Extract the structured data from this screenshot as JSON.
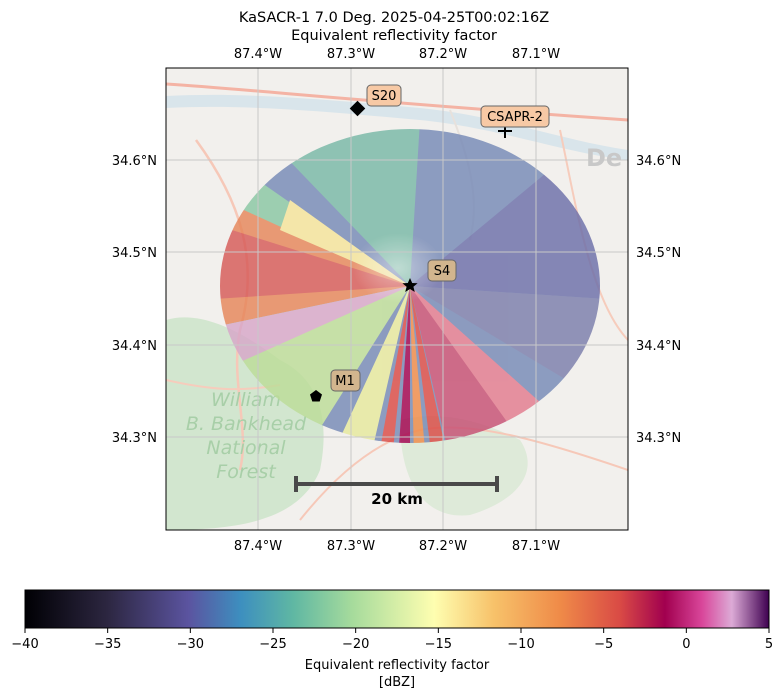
{
  "figure": {
    "title_line1": "KaSACR-1 7.0 Deg. 2025-04-25T00:02:16Z",
    "title_line2": "Equivalent reflectivity factor"
  },
  "map": {
    "lon_ticks": [
      "87.4°W",
      "87.3°W",
      "87.2°W",
      "87.1°W"
    ],
    "lat_ticks": [
      "34.6°N",
      "34.5°N",
      "34.4°N",
      "34.3°N"
    ],
    "gridlines": true,
    "basemap_text": {
      "town": "De",
      "forest": [
        "William",
        "B. Bankhead",
        "National",
        "Forest"
      ]
    },
    "scale_bar_label": "20 km"
  },
  "sites": [
    {
      "name": "S20",
      "marker": "diamond"
    },
    {
      "name": "CSAPR-2",
      "marker": "plus"
    },
    {
      "name": "S4",
      "marker": "star"
    },
    {
      "name": "M1",
      "marker": "pentagon"
    }
  ],
  "colorbar": {
    "label_line1": "Equivalent reflectivity factor",
    "label_line2": "[dBZ]",
    "ticks": [
      "−40",
      "−35",
      "−30",
      "−25",
      "−20",
      "−15",
      "−10",
      "−5",
      "0",
      "5"
    ],
    "cmap": "spectral-like (black-purple-blue-green-yellow-orange-red-magenta-pink-purple)"
  },
  "chart_data": {
    "type": "heatmap",
    "title": "KaSACR-1 7.0 Deg. 2025-04-25T00:02:16Z",
    "subtitle": "Equivalent reflectivity factor",
    "xlabel": "",
    "ylabel": "",
    "xlim": [
      -87.5,
      -87.0
    ],
    "ylim": [
      34.2,
      34.7
    ],
    "x_ticks": [
      -87.4,
      -87.3,
      -87.2,
      -87.1
    ],
    "y_ticks": [
      34.6,
      34.5,
      34.4,
      34.3
    ],
    "grid": true,
    "radar": {
      "lon": -87.237,
      "lat": 34.466,
      "elevation_deg": 7.0,
      "approx_range_km": 18
    },
    "sites": [
      {
        "name": "S20",
        "lon": -87.293,
        "lat": 34.655
      },
      {
        "name": "CSAPR-2",
        "lon": -87.133,
        "lat": 34.632
      },
      {
        "name": "S4",
        "lon": -87.237,
        "lat": 34.466
      },
      {
        "name": "M1",
        "lon": -87.337,
        "lat": 34.343
      }
    ],
    "colorbar": {
      "label": "Equivalent reflectivity factor [dBZ]",
      "vmin": -40,
      "vmax": 5
    },
    "field_summary": [
      {
        "region": "north & east of radar",
        "value_dbz": -27
      },
      {
        "region": "west sector",
        "value_dbz": -12
      },
      {
        "region": "southwest streaks",
        "value_dbz": -18
      },
      {
        "region": "south radial spokes",
        "value_dbz": -8
      },
      {
        "region": "southeast streaks",
        "value_dbz": -6
      }
    ],
    "scale_bar": {
      "length_km": 20,
      "label": "20 km"
    }
  }
}
